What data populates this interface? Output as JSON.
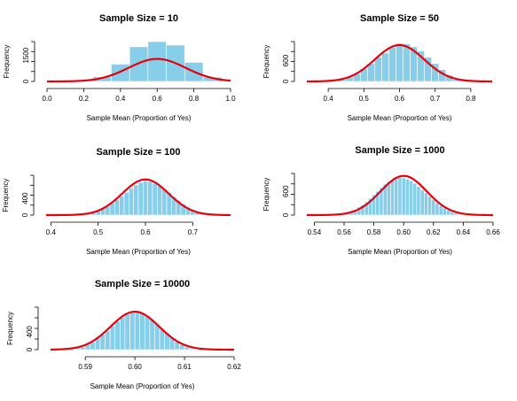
{
  "colors": {
    "bar": "#87CEEB",
    "bar_edge": "#ffffff",
    "curve": "#E8000B",
    "axis": "#000000"
  },
  "chart_data": [
    {
      "type": "bar",
      "title": "Sample Size = 10",
      "xlabel": "Sample Mean (Proportion of Yes)",
      "ylabel": "Frequency",
      "xlim": [
        0.0,
        1.0
      ],
      "ylim": [
        0,
        2300
      ],
      "xticks": [
        0.0,
        0.2,
        0.4,
        0.6,
        0.8,
        1.0
      ],
      "xtick_labels": [
        "0.0",
        "0.2",
        "0.4",
        "0.6",
        "0.8",
        "1.0"
      ],
      "yticks": [
        0,
        1500
      ],
      "ytick_labels": [
        "0",
        "1500"
      ],
      "bin_width": 0.1,
      "x": [
        0.2,
        0.3,
        0.4,
        0.5,
        0.6,
        0.7,
        0.8,
        0.9
      ],
      "values": [
        50,
        260,
        1000,
        2000,
        2300,
        2100,
        1100,
        250
      ],
      "curve": {
        "mean": 0.6,
        "sd": 0.155,
        "peak": 1300
      }
    },
    {
      "type": "bar",
      "title": "Sample Size = 50",
      "xlabel": "Sample Mean (Proportion of Yes)",
      "ylabel": "Frequency",
      "xlim": [
        0.34,
        0.86
      ],
      "ylim": [
        0,
        1150
      ],
      "xticks": [
        0.4,
        0.5,
        0.6,
        0.7,
        0.8
      ],
      "xtick_labels": [
        "0.4",
        "0.5",
        "0.6",
        "0.7",
        "0.8"
      ],
      "yticks": [
        0,
        600
      ],
      "ytick_labels": [
        "0",
        "600"
      ],
      "bin_width": 0.02,
      "x": [
        0.42,
        0.44,
        0.46,
        0.48,
        0.5,
        0.52,
        0.54,
        0.56,
        0.58,
        0.6,
        0.62,
        0.64,
        0.66,
        0.68,
        0.7,
        0.72,
        0.74,
        0.76
      ],
      "values": [
        20,
        60,
        120,
        220,
        370,
        520,
        700,
        820,
        980,
        1100,
        1080,
        1000,
        880,
        700,
        520,
        340,
        180,
        60
      ],
      "curve": {
        "mean": 0.6,
        "sd": 0.069,
        "peak": 1050
      }
    },
    {
      "type": "bar",
      "title": "Sample Size = 100",
      "xlabel": "Sample Mean (Proportion of Yes)",
      "ylabel": "Frequency",
      "xlim": [
        0.39,
        0.78
      ],
      "ylim": [
        0,
        950
      ],
      "xticks": [
        0.4,
        0.5,
        0.6,
        0.7
      ],
      "xtick_labels": [
        "0.4",
        "0.5",
        "0.6",
        "0.7"
      ],
      "yticks": [
        0,
        400
      ],
      "ytick_labels": [
        "0",
        "400"
      ],
      "bin_width": 0.01,
      "x": [
        0.46,
        0.47,
        0.48,
        0.49,
        0.5,
        0.51,
        0.52,
        0.53,
        0.54,
        0.55,
        0.56,
        0.57,
        0.58,
        0.59,
        0.6,
        0.61,
        0.62,
        0.63,
        0.64,
        0.65,
        0.66,
        0.67,
        0.68,
        0.69,
        0.7,
        0.71,
        0.72,
        0.73
      ],
      "values": [
        10,
        30,
        40,
        80,
        100,
        160,
        200,
        280,
        370,
        450,
        540,
        640,
        720,
        780,
        820,
        800,
        760,
        700,
        620,
        540,
        440,
        350,
        270,
        190,
        130,
        80,
        40,
        15
      ],
      "curve": {
        "mean": 0.6,
        "sd": 0.049,
        "peak": 850
      }
    },
    {
      "type": "bar",
      "title": "Sample Size = 1000",
      "xlabel": "Sample Mean (Proportion of Yes)",
      "ylabel": "Frequency",
      "xlim": [
        0.535,
        0.66
      ],
      "ylim": [
        0,
        1050
      ],
      "xticks": [
        0.54,
        0.56,
        0.58,
        0.6,
        0.62,
        0.64,
        0.66
      ],
      "xtick_labels": [
        "0.54",
        "0.56",
        "0.58",
        "0.60",
        "0.62",
        "0.64",
        "0.66"
      ],
      "yticks": [
        0,
        600
      ],
      "ytick_labels": [
        "0",
        "600"
      ],
      "bin_width": 0.0025,
      "x": [
        0.555,
        0.5575,
        0.56,
        0.5625,
        0.565,
        0.5675,
        0.57,
        0.5725,
        0.575,
        0.5775,
        0.58,
        0.5825,
        0.585,
        0.5875,
        0.59,
        0.5925,
        0.595,
        0.5975,
        0.6,
        0.6025,
        0.605,
        0.6075,
        0.61,
        0.6125,
        0.615,
        0.6175,
        0.62,
        0.6225,
        0.625,
        0.6275,
        0.63,
        0.6325,
        0.635,
        0.6375,
        0.64
      ],
      "values": [
        10,
        20,
        40,
        60,
        90,
        140,
        200,
        260,
        330,
        420,
        510,
        600,
        690,
        780,
        850,
        900,
        930,
        950,
        940,
        910,
        870,
        800,
        720,
        640,
        560,
        470,
        390,
        310,
        240,
        180,
        120,
        80,
        50,
        25,
        10
      ],
      "curve": {
        "mean": 0.6,
        "sd": 0.0155,
        "peak": 990
      }
    },
    {
      "type": "bar",
      "title": "Sample Size = 10000",
      "xlabel": "Sample Mean (Proportion of Yes)",
      "ylabel": "Frequency",
      "xlim": [
        0.583,
        0.62
      ],
      "ylim": [
        0,
        950
      ],
      "xticks": [
        0.59,
        0.6,
        0.61,
        0.62
      ],
      "xtick_labels": [
        "0.59",
        "0.60",
        "0.61",
        "0.62"
      ],
      "yticks": [
        0,
        400
      ],
      "ytick_labels": [
        "0",
        "400"
      ],
      "bin_width": 0.001,
      "x": [
        0.5875,
        0.5885,
        0.5895,
        0.5905,
        0.5915,
        0.5925,
        0.5935,
        0.5945,
        0.5955,
        0.5965,
        0.5975,
        0.5985,
        0.5995,
        0.6005,
        0.6015,
        0.6025,
        0.6035,
        0.6045,
        0.6055,
        0.6065,
        0.6075,
        0.6085,
        0.6095,
        0.6105,
        0.6115
      ],
      "values": [
        15,
        35,
        60,
        110,
        170,
        250,
        340,
        430,
        530,
        630,
        720,
        790,
        830,
        840,
        810,
        750,
        670,
        570,
        470,
        370,
        270,
        180,
        110,
        60,
        25
      ],
      "curve": {
        "mean": 0.6,
        "sd": 0.0049,
        "peak": 850
      }
    }
  ]
}
